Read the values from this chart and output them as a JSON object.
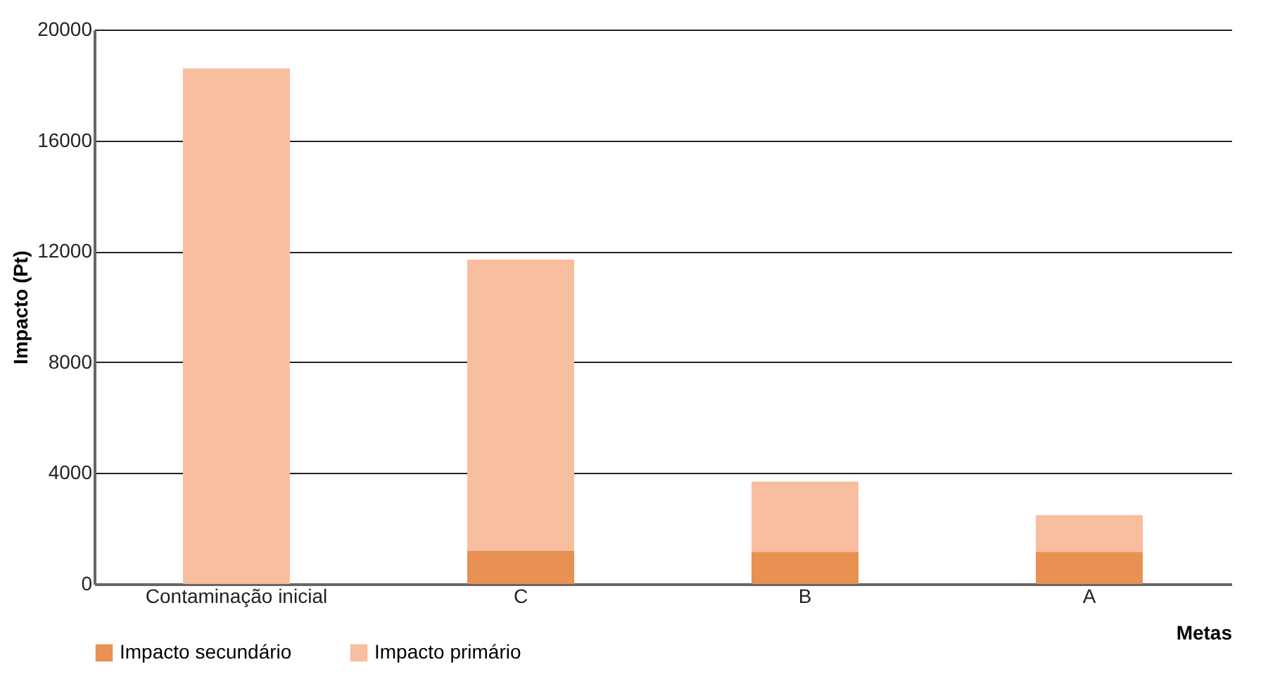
{
  "chart_data": {
    "type": "bar",
    "stacked": true,
    "xlabel": "Metas",
    "ylabel": "Impacto (Pt)",
    "categories": [
      "Contaminação inicial",
      "C",
      "B",
      "A"
    ],
    "series": [
      {
        "name": "Impacto secundário",
        "color": "#e89152",
        "values": [
          0,
          1200,
          1160,
          1160
        ]
      },
      {
        "name": "Impacto primário",
        "color": "#f7bea0",
        "values": [
          18600,
          10500,
          2530,
          1320
        ]
      }
    ],
    "ylim": [
      0,
      20000
    ],
    "yticks": [
      0,
      4000,
      8000,
      12000,
      16000,
      20000
    ],
    "grid": "y",
    "legend": "bottom"
  }
}
